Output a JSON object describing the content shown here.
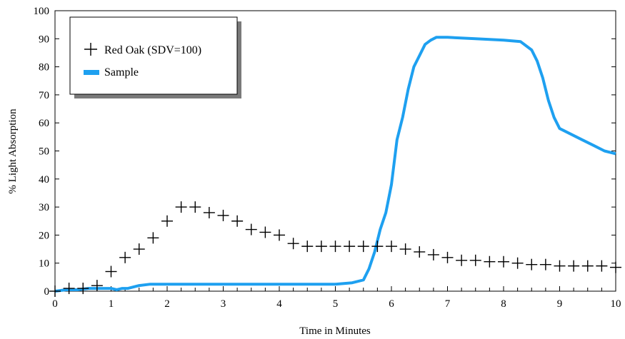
{
  "chart_data": {
    "type": "line",
    "title": "",
    "xlabel": "Time in Minutes",
    "ylabel": "% Light Absorption",
    "xlim": [
      0,
      10
    ],
    "ylim": [
      0,
      100
    ],
    "xticks": [
      0,
      1,
      2,
      3,
      4,
      5,
      6,
      7,
      8,
      9,
      10
    ],
    "yticks": [
      0,
      10,
      20,
      30,
      40,
      50,
      60,
      70,
      80,
      90,
      100
    ],
    "grid": false,
    "legend": {
      "placement": "top-left",
      "entries": [
        {
          "label": "Red Oak (SDV=100)",
          "marker": "plus"
        },
        {
          "label": "Sample",
          "marker": "line"
        }
      ]
    },
    "colors": {
      "sample": "#1ea0f0",
      "red_oak": "#000000"
    },
    "series": [
      {
        "name": "Red Oak (SDV=100)",
        "marker": "plus",
        "x": [
          0,
          0.25,
          0.5,
          0.75,
          1.0,
          1.25,
          1.5,
          1.75,
          2.0,
          2.25,
          2.5,
          2.75,
          3.0,
          3.25,
          3.5,
          3.75,
          4.0,
          4.25,
          4.5,
          4.75,
          5.0,
          5.25,
          5.5,
          5.75,
          6.0,
          6.25,
          6.5,
          6.75,
          7.0,
          7.25,
          7.5,
          7.75,
          8.0,
          8.25,
          8.5,
          8.75,
          9.0,
          9.25,
          9.5,
          9.75,
          10.0
        ],
        "y": [
          0,
          1,
          1,
          2,
          7,
          12,
          15,
          19,
          25,
          30,
          30,
          28,
          27,
          25,
          22,
          21,
          20,
          17,
          16,
          16,
          16,
          16,
          16,
          16,
          16,
          15,
          14,
          13,
          12,
          11,
          11,
          10.5,
          10.5,
          10,
          9.5,
          9.5,
          9,
          9,
          9,
          9,
          8.5
        ]
      },
      {
        "name": "Sample",
        "marker": "line",
        "x": [
          0,
          0.2,
          0.4,
          0.6,
          0.8,
          1.0,
          1.1,
          1.2,
          1.3,
          1.4,
          1.5,
          1.7,
          2.0,
          2.5,
          3.0,
          3.5,
          4.0,
          4.5,
          5.0,
          5.3,
          5.5,
          5.6,
          5.7,
          5.8,
          5.9,
          6.0,
          6.1,
          6.2,
          6.3,
          6.4,
          6.5,
          6.6,
          6.7,
          6.8,
          6.9,
          7.0,
          7.5,
          8.0,
          8.3,
          8.5,
          8.6,
          8.7,
          8.8,
          8.9,
          9.0,
          9.2,
          9.4,
          9.6,
          9.8,
          10.0
        ],
        "y": [
          0,
          0.5,
          0.5,
          1,
          1,
          1,
          0.5,
          1,
          1,
          1.5,
          2,
          2.5,
          2.5,
          2.5,
          2.5,
          2.5,
          2.5,
          2.5,
          2.5,
          3,
          4,
          8,
          14,
          22,
          28,
          38,
          54,
          62,
          72,
          80,
          84,
          88,
          89.5,
          90.5,
          90.5,
          90.5,
          90,
          89.5,
          89,
          86,
          82,
          76,
          68,
          62,
          58,
          56,
          54,
          52,
          50,
          49
        ]
      }
    ]
  }
}
